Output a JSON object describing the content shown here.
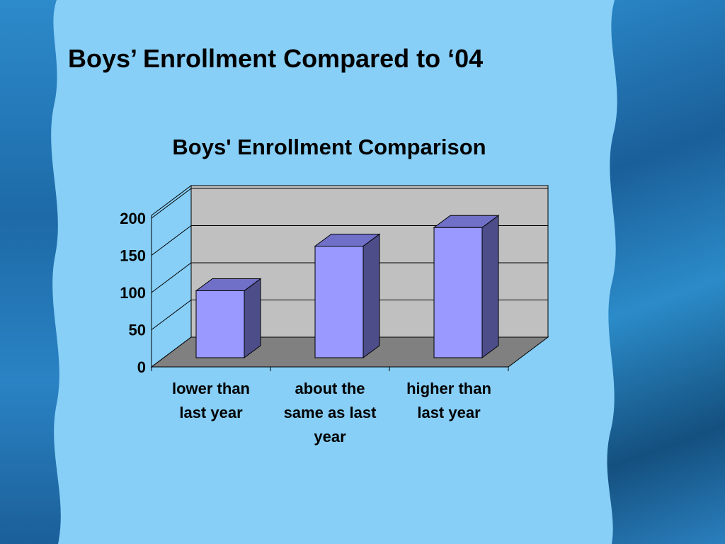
{
  "slide": {
    "title": "Boys’ Enrollment Compared to ‘04"
  },
  "colors": {
    "slide_background": "#87cff7",
    "bar_front": "#9999ff",
    "bar_top": "#7070c8",
    "bar_side": "#4d4d8a",
    "wall": "#c0c0c0",
    "floor": "#808080"
  },
  "chart_data": {
    "type": "bar",
    "title": "Boys' Enrollment Comparison",
    "categories": [
      [
        "lower than",
        "last year"
      ],
      [
        "about the",
        "same as last",
        "year"
      ],
      [
        "higher than",
        "last year"
      ]
    ],
    "values": [
      90,
      150,
      175
    ],
    "ylim": [
      0,
      200
    ],
    "yticks": [
      0,
      50,
      100,
      150,
      200
    ],
    "xlabel": "",
    "ylabel": "",
    "grid": true,
    "three_d": true,
    "legend": "none"
  }
}
